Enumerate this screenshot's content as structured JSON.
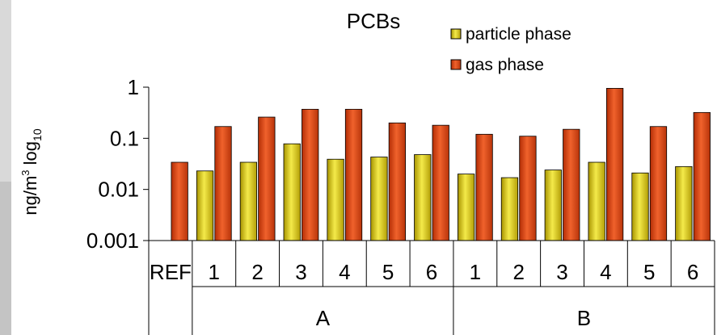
{
  "chart_data": {
    "type": "bar",
    "title": "PCBs",
    "ylabel": "ng/m³ log₁₀",
    "ylabel_parts": {
      "main": "ng/m",
      "sup": "3",
      "sp": " log",
      "sub": "10"
    },
    "yscale": "log",
    "ylim": [
      0.001,
      1
    ],
    "yticks": [
      0.001,
      0.01,
      0.1,
      1
    ],
    "ytick_labels": [
      "0.001",
      "0.01",
      "0.1",
      "1"
    ],
    "grid": false,
    "legend_position": "top-right",
    "categories": [
      "REF",
      "1",
      "2",
      "3",
      "4",
      "5",
      "6",
      "1",
      "2",
      "3",
      "4",
      "5",
      "6"
    ],
    "groups": [
      {
        "label": "",
        "span": [
          0,
          0
        ]
      },
      {
        "label": "A",
        "span": [
          1,
          6
        ]
      },
      {
        "label": "B",
        "span": [
          7,
          12
        ]
      }
    ],
    "series": [
      {
        "name": "particle phase",
        "color": "#d9cc2a",
        "values": [
          null,
          0.023,
          0.034,
          0.078,
          0.039,
          0.043,
          0.048,
          0.02,
          0.017,
          0.024,
          0.034,
          0.021,
          0.028
        ]
      },
      {
        "name": "gas phase",
        "color": "#e2521e",
        "values": [
          0.034,
          0.17,
          0.26,
          0.37,
          0.37,
          0.2,
          0.18,
          0.12,
          0.11,
          0.15,
          0.95,
          0.17,
          0.32
        ]
      }
    ]
  }
}
